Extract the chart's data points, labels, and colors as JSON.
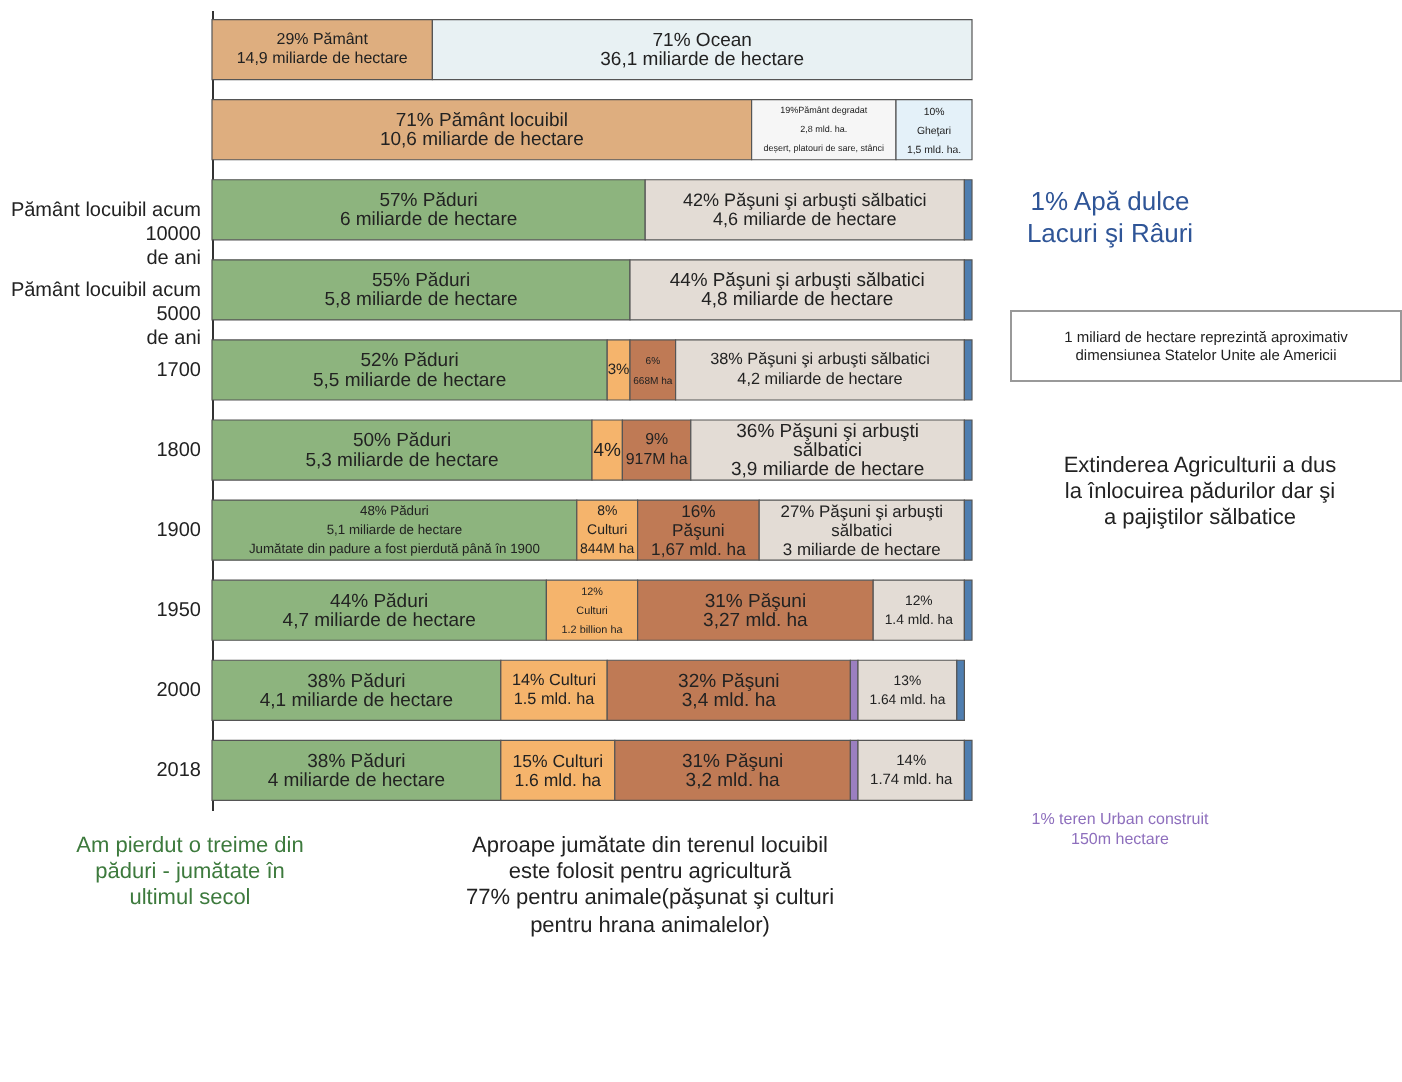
{
  "chart_data": {
    "type": "bar",
    "orientation": "horizontal",
    "stacked": true,
    "categories": [
      null,
      null,
      "Pământ locuibil acum\n10000\nde ani",
      "Pământ locuibil acum\n5000\nde ani",
      "1700",
      "1800",
      "1900",
      "1950",
      "2000",
      "2018"
    ],
    "series": [
      {
        "color": "#deae7f",
        "values": [
          29,
          null,
          null,
          null,
          null,
          null,
          null,
          null,
          null,
          null
        ],
        "value_labels": [
          "29% Pământ\n14,9 miliarde de hectare",
          null,
          null,
          null,
          null,
          null,
          null,
          null,
          null,
          null
        ]
      },
      {
        "color": "#e8f1f3",
        "values": [
          71,
          null,
          null,
          null,
          null,
          null,
          null,
          null,
          null,
          null
        ],
        "value_labels": [
          "71% Ocean\n36,1 miliarde de hectare",
          null,
          null,
          null,
          null,
          null,
          null,
          null,
          null,
          null
        ]
      },
      {
        "color": "#deae7f",
        "values": [
          null,
          71,
          null,
          null,
          null,
          null,
          null,
          null,
          null,
          null
        ],
        "value_labels": [
          null,
          "71% Pământ locuibil\n10,6 miliarde de hectare",
          null,
          null,
          null,
          null,
          null,
          null,
          null,
          null
        ]
      },
      {
        "color": "#f6f6f6",
        "values": [
          null,
          19,
          null,
          null,
          null,
          null,
          null,
          null,
          null,
          null
        ],
        "value_labels": [
          null,
          "19%Pământ degradat\n2,8 mld. ha.\ndeșert, platouri de sare, stânci",
          null,
          null,
          null,
          null,
          null,
          null,
          null,
          null
        ]
      },
      {
        "color": "#e4f1f9",
        "values": [
          null,
          10,
          null,
          null,
          null,
          null,
          null,
          null,
          null,
          null
        ],
        "value_labels": [
          null,
          "10%\nGheţari\n1,5 mld. ha.",
          null,
          null,
          null,
          null,
          null,
          null,
          null,
          null
        ]
      },
      {
        "color": "#8db47e",
        "values": [
          null,
          null,
          57,
          55,
          52,
          50,
          48,
          44,
          38,
          38
        ],
        "value_labels": [
          null,
          null,
          "57% Păduri\n6 miliarde de hectare",
          "55% Păduri\n5,8 miliarde de hectare",
          "52% Păduri\n5,5 miliarde de hectare",
          "50% Păduri\n5,3 miliarde de hectare",
          "48% Păduri\n5,1 miliarde de hectare\nJumătate din padure a fost pierdută până în 1900",
          "44% Păduri\n4,7 miliarde de hectare",
          "38% Păduri\n4,1 miliarde de hectare",
          "38% Păduri\n4 miliarde de hectare"
        ]
      },
      {
        "color": "#f5b46c",
        "values": [
          null,
          null,
          null,
          null,
          3,
          4,
          8,
          12,
          14,
          15
        ],
        "value_labels": [
          null,
          null,
          null,
          null,
          "3%",
          "4%",
          "8%\nCulturi\n844M ha",
          "12%\nCulturi\n1.2 billion ha",
          "14% Culturi\n1.5 mld. ha",
          "15% Culturi\n1.6 mld. ha"
        ]
      },
      {
        "color": "#bf7a55",
        "values": [
          null,
          null,
          null,
          null,
          6,
          9,
          16,
          31,
          32,
          31
        ],
        "value_labels": [
          null,
          null,
          null,
          null,
          "6%\n668M ha",
          "9%\n917M ha",
          "16%\nPăşuni\n1,67 mld. ha",
          "31% Păşuni\n3,27 mld. ha",
          "32% Păşuni\n3,4 mld. ha",
          "31% Păşuni\n3,2 mld. ha"
        ]
      },
      {
        "color": "#9b7fc0",
        "values": [
          null,
          null,
          null,
          null,
          null,
          null,
          null,
          null,
          1,
          1
        ]
      },
      {
        "color": "#e3dcd5",
        "values": [
          null,
          null,
          42,
          44,
          38,
          36,
          27,
          12,
          13,
          14
        ],
        "value_labels": [
          null,
          null,
          "42% Păşuni şi arbuşti sălbatici\n4,6 miliarde de hectare",
          "44% Păşuni şi arbuşti sălbatici\n4,8 miliarde de hectare",
          "38% Păşuni şi arbuşti sălbatici\n4,2 miliarde de hectare",
          "36% Păşuni şi arbuşti\nsălbatici\n3,9 miliarde de hectare",
          "27% Păşuni şi arbuşti\nsălbatici\n3 miliarde de hectare",
          "12%\n1.4 mld. ha",
          "13%\n1.64 mld. ha",
          "14%\n1.74 mld. ha"
        ]
      },
      {
        "color": "#4f7eb0",
        "values": [
          null,
          null,
          1,
          1,
          1,
          1,
          1,
          1,
          1,
          1
        ]
      }
    ],
    "annotations": [
      "1% Apă dulce\nLacuri şi Râuri",
      "1 miliard de hectare reprezintă aproximativ\ndimensiunea Statelor Unite ale Americii",
      "Extinderea Agriculturii a dus\nla înlocuirea pădurilor dar şi\na pajiştilor sălbatice",
      "Am pierdut o treime din\npăduri - jumătate în\nultimul secol",
      "Aproape jumătate din terenul locuibil\neste folosit pentru agricultură\n77% pentru animale(păşunat şi culturi\npentru hrana animalelor)",
      "1% teren Urban construit\n150m hectare"
    ]
  }
}
